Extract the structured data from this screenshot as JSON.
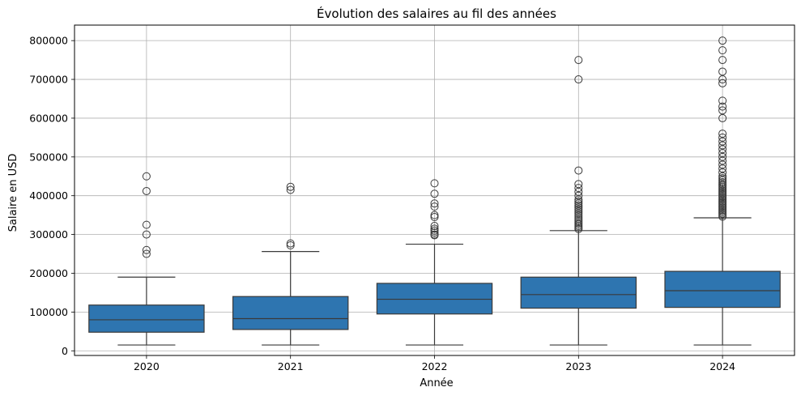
{
  "chart_data": {
    "type": "box",
    "title": "Évolution des salaires au fil des années",
    "xlabel": "Année",
    "ylabel": "Salaire en USD",
    "ylim": [
      -12000,
      840000
    ],
    "yticks": [
      0,
      100000,
      200000,
      300000,
      400000,
      500000,
      600000,
      700000,
      800000
    ],
    "ytick_labels": [
      "0",
      "100000",
      "200000",
      "300000",
      "400000",
      "500000",
      "600000",
      "700000",
      "800000"
    ],
    "grid": true,
    "box_color": "#2e75b0",
    "categories": [
      "2020",
      "2021",
      "2022",
      "2023",
      "2024"
    ],
    "boxes": [
      {
        "category": "2020",
        "whisker_low": 15000,
        "q1": 48000,
        "median": 80000,
        "q3": 118000,
        "whisker_high": 190000,
        "outliers": [
          250000,
          260000,
          300000,
          325000,
          412000,
          450000
        ]
      },
      {
        "category": "2021",
        "whisker_low": 15000,
        "q1": 55000,
        "median": 83000,
        "q3": 140000,
        "whisker_high": 256000,
        "outliers": [
          272000,
          277000,
          415000,
          423000
        ]
      },
      {
        "category": "2022",
        "whisker_low": 15000,
        "q1": 95000,
        "median": 133000,
        "q3": 174000,
        "whisker_high": 275000,
        "outliers": [
          298000,
          300000,
          305000,
          310000,
          315000,
          322000,
          345000,
          350000,
          372000,
          380000,
          405000,
          432000
        ]
      },
      {
        "category": "2023",
        "whisker_low": 15000,
        "q1": 110000,
        "median": 145000,
        "q3": 190000,
        "whisker_high": 310000,
        "outliers": [
          314000,
          318000,
          322000,
          326000,
          330000,
          335000,
          340000,
          345000,
          350000,
          355000,
          360000,
          365000,
          370000,
          375000,
          380000,
          385000,
          390000,
          400000,
          410000,
          420000,
          430000,
          465000,
          700000,
          750000
        ]
      },
      {
        "category": "2024",
        "whisker_low": 15000,
        "q1": 112000,
        "median": 155000,
        "q3": 205000,
        "whisker_high": 343000,
        "outliers": [
          346000,
          350000,
          354000,
          358000,
          362000,
          366000,
          370000,
          374000,
          378000,
          382000,
          386000,
          390000,
          394000,
          398000,
          402000,
          406000,
          410000,
          414000,
          418000,
          422000,
          426000,
          430000,
          435000,
          440000,
          445000,
          450000,
          460000,
          470000,
          480000,
          490000,
          500000,
          510000,
          520000,
          530000,
          540000,
          550000,
          560000,
          600000,
          620000,
          630000,
          645000,
          690000,
          700000,
          720000,
          750000,
          775000,
          800000
        ]
      }
    ]
  }
}
